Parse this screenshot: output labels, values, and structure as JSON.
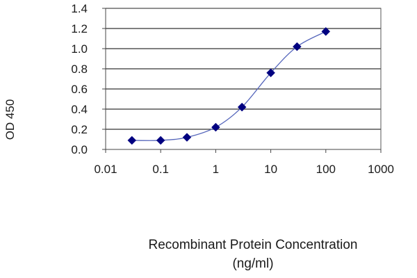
{
  "chart_data": {
    "type": "line",
    "title": "",
    "xlabel_line1": "Recombinant Protein Concentration",
    "xlabel_line2": "(ng/ml)",
    "ylabel": "OD 450",
    "xscale": "log",
    "xlim": [
      0.01,
      1000
    ],
    "ylim": [
      0,
      1.4
    ],
    "x_ticks": [
      0.01,
      0.1,
      1,
      10,
      100,
      1000
    ],
    "x_tick_labels": [
      "0.01",
      "0.1",
      "1",
      "10",
      "100",
      "1000"
    ],
    "y_ticks": [
      0,
      0.2,
      0.4,
      0.6,
      0.8,
      1.0,
      1.2,
      1.4
    ],
    "y_tick_labels": [
      "0.0",
      "0.2",
      "0.4",
      "0.6",
      "0.8",
      "1.0",
      "1.2",
      "1.4"
    ],
    "grid": "horizontal",
    "legend": "none",
    "series": [
      {
        "x": [
          0.03,
          0.1,
          0.3,
          1,
          3,
          10,
          30,
          100
        ],
        "y": [
          0.09,
          0.09,
          0.12,
          0.22,
          0.42,
          0.76,
          1.02,
          1.17
        ],
        "marker": "diamond",
        "line": "smooth",
        "color": "#000080",
        "line_color": "#5566bb"
      }
    ]
  }
}
